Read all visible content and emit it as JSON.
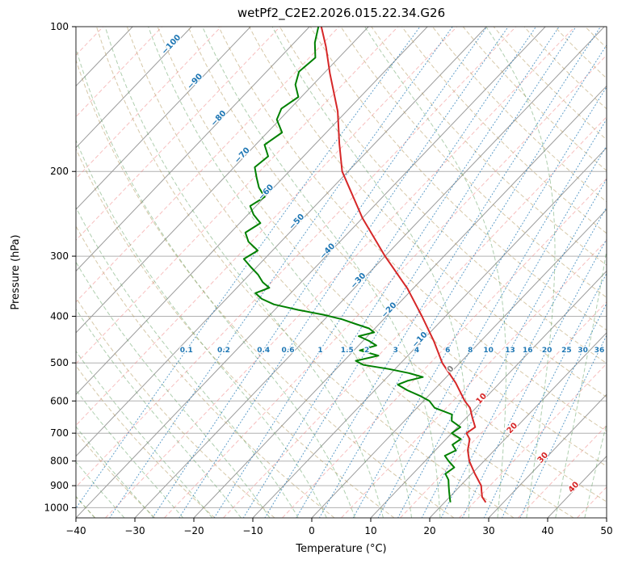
{
  "chart_data": {
    "type": "line",
    "subtype": "skewt-log-p",
    "title": "wetPf2_C2E2.2026.015.22.34.G26",
    "xlabel": "Temperature (°C)",
    "ylabel": "Pressure (hPa)",
    "xlim": [
      -40,
      50
    ],
    "pressure_lim": [
      100,
      1050
    ],
    "skew_slope": 0.956,
    "x_ticks": [
      -40,
      -30,
      -20,
      -10,
      0,
      10,
      20,
      30,
      40,
      50
    ],
    "p_ticks": [
      100,
      200,
      300,
      400,
      500,
      600,
      700,
      800,
      900,
      1000
    ],
    "isotherm_range": {
      "start": -160,
      "end": 60,
      "step": 10
    },
    "isotherm_labels": [
      -100,
      -90,
      -80,
      -70,
      -60,
      -50,
      -40,
      -30,
      -20,
      -10,
      0,
      10,
      20,
      30,
      40
    ],
    "dry_adiabats": {
      "start": -40,
      "end": 200,
      "step": 10
    },
    "moist_adiabats": {
      "start": -40,
      "end": 45,
      "step": 5
    },
    "mixing_ratios": [
      0.1,
      0.2,
      0.4,
      0.6,
      1,
      1.5,
      2,
      3,
      4,
      6,
      8,
      10,
      13,
      16,
      20,
      25,
      30,
      36
    ],
    "mixing_label_pressure": 470,
    "series": [
      {
        "name": "temperature",
        "color": "#d62728",
        "points": [
          [
            975,
            27
          ],
          [
            950,
            25.5
          ],
          [
            925,
            24.5
          ],
          [
            900,
            23.5
          ],
          [
            850,
            20.5
          ],
          [
            800,
            17.5
          ],
          [
            760,
            15.5
          ],
          [
            720,
            14
          ],
          [
            700,
            12.5
          ],
          [
            680,
            13
          ],
          [
            650,
            11
          ],
          [
            620,
            9
          ],
          [
            600,
            7
          ],
          [
            550,
            2.5
          ],
          [
            500,
            -3
          ],
          [
            450,
            -8
          ],
          [
            400,
            -14
          ],
          [
            350,
            -21
          ],
          [
            300,
            -30
          ],
          [
            250,
            -40
          ],
          [
            200,
            -51
          ],
          [
            175,
            -56
          ],
          [
            150,
            -61.5
          ],
          [
            125,
            -69
          ],
          [
            110,
            -74
          ],
          [
            100,
            -78
          ]
        ]
      },
      {
        "name": "dewpoint",
        "color": "#008000",
        "points": [
          [
            975,
            21
          ],
          [
            950,
            20
          ],
          [
            925,
            19
          ],
          [
            900,
            18
          ],
          [
            875,
            17
          ],
          [
            850,
            15.5
          ],
          [
            825,
            16
          ],
          [
            800,
            14
          ],
          [
            780,
            12.5
          ],
          [
            760,
            13.5
          ],
          [
            740,
            12
          ],
          [
            720,
            12.5
          ],
          [
            700,
            10
          ],
          [
            680,
            10.5
          ],
          [
            660,
            8
          ],
          [
            640,
            7
          ],
          [
            620,
            3
          ],
          [
            600,
            1
          ],
          [
            585,
            -1.5
          ],
          [
            570,
            -4.5
          ],
          [
            555,
            -7
          ],
          [
            545,
            -6
          ],
          [
            535,
            -4
          ],
          [
            525,
            -7
          ],
          [
            515,
            -11
          ],
          [
            505,
            -16
          ],
          [
            495,
            -18
          ],
          [
            483,
            -15
          ],
          [
            471,
            -19
          ],
          [
            460,
            -17
          ],
          [
            450,
            -19
          ],
          [
            440,
            -21.5
          ],
          [
            432,
            -19.5
          ],
          [
            424,
            -21
          ],
          [
            415,
            -24
          ],
          [
            406,
            -27
          ],
          [
            397,
            -31
          ],
          [
            388,
            -36
          ],
          [
            378,
            -41
          ],
          [
            368,
            -44
          ],
          [
            358,
            -46
          ],
          [
            349,
            -44.5
          ],
          [
            340,
            -46.5
          ],
          [
            328,
            -48.5
          ],
          [
            316,
            -51
          ],
          [
            304,
            -53.5
          ],
          [
            292,
            -52.5
          ],
          [
            280,
            -55.5
          ],
          [
            268,
            -57.5
          ],
          [
            256,
            -56.5
          ],
          [
            246,
            -59
          ],
          [
            236,
            -61
          ],
          [
            226,
            -60
          ],
          [
            216,
            -62.5
          ],
          [
            206,
            -64.5
          ],
          [
            196,
            -66.5
          ],
          [
            186,
            -66
          ],
          [
            176,
            -68.5
          ],
          [
            166,
            -67.5
          ],
          [
            156,
            -70.5
          ],
          [
            148,
            -71.5
          ],
          [
            140,
            -70.5
          ],
          [
            132,
            -73
          ],
          [
            124,
            -74.5
          ],
          [
            116,
            -74
          ],
          [
            108,
            -76.5
          ],
          [
            100,
            -78.5
          ]
        ]
      }
    ],
    "colors": {
      "grid": "#b0b0b0",
      "isotherm_major": "#9c9c9c",
      "isotherm_minor": "#f08080",
      "dry_adiabat": "#b59a60",
      "moist_adiabat": "#5fa05f",
      "mixing_line": "#1f77b4",
      "label_neg": "#1f77b4",
      "label_zero": "#7f7f7f",
      "label_pos": "#d62728",
      "axis": "#000000"
    }
  }
}
